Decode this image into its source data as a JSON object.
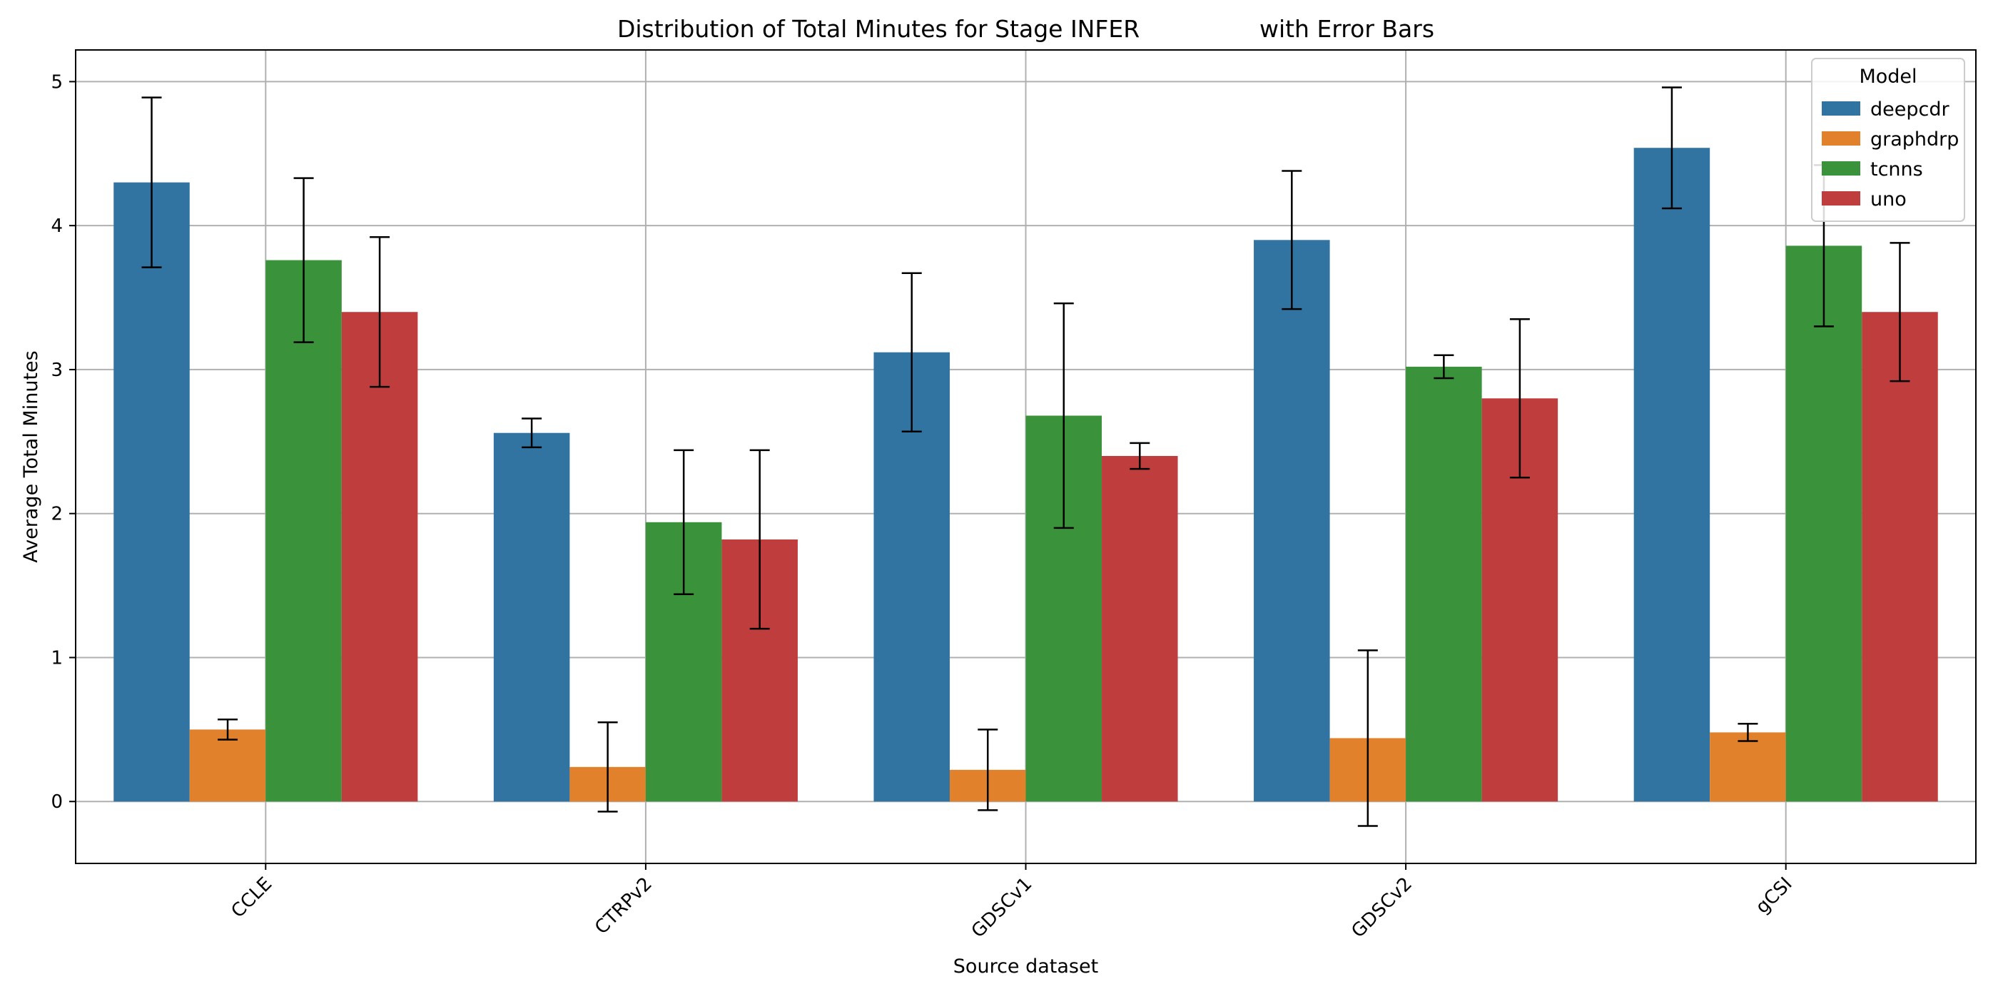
{
  "chart_data": {
    "type": "bar",
    "title": "Distribution of Total Minutes for Stage INFER                with Error Bars",
    "xlabel": "Source dataset",
    "ylabel": "Average Total Minutes",
    "categories": [
      "CCLE",
      "CTRPv2",
      "GDSCv1",
      "GDSCv2",
      "gCSI"
    ],
    "ylim": [
      -0.43,
      5.22
    ],
    "yticks": [
      0,
      1,
      2,
      3,
      4,
      5
    ],
    "grid": true,
    "legend": {
      "title": "Model",
      "placement": "top-right"
    },
    "series": [
      {
        "name": "deepcdr",
        "color": "#3274a1",
        "values": [
          4.3,
          2.56,
          3.12,
          3.9,
          4.54
        ],
        "errors": [
          0.59,
          0.1,
          0.55,
          0.48,
          0.42
        ]
      },
      {
        "name": "graphdrp",
        "color": "#e1812c",
        "values": [
          0.5,
          0.24,
          0.22,
          0.44,
          0.48
        ],
        "errors": [
          0.07,
          0.31,
          0.28,
          0.61,
          0.06
        ]
      },
      {
        "name": "tcnns",
        "color": "#3a923a",
        "values": [
          3.76,
          1.94,
          2.68,
          3.02,
          3.86
        ],
        "errors": [
          0.57,
          0.5,
          0.78,
          0.08,
          0.56
        ]
      },
      {
        "name": "uno",
        "color": "#c03d3e",
        "values": [
          3.4,
          1.82,
          2.4,
          2.8,
          3.4
        ],
        "errors": [
          0.52,
          0.62,
          0.09,
          0.55,
          0.48
        ]
      }
    ]
  }
}
